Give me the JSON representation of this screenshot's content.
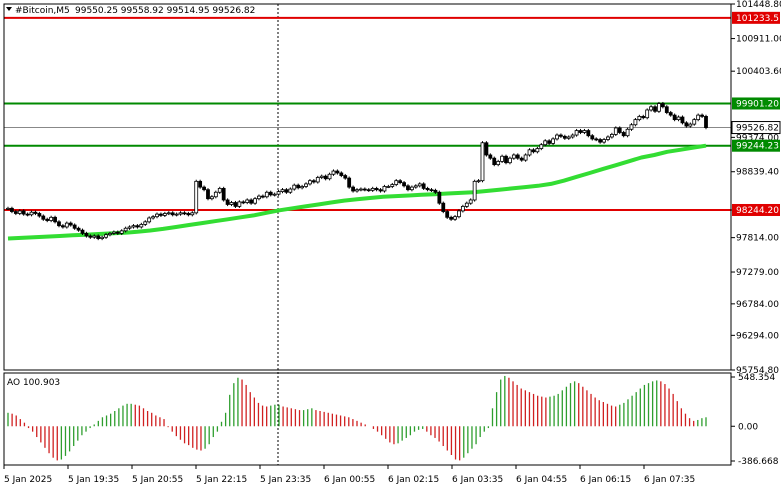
{
  "header": {
    "symbol_label": "#Bitcoin,M5",
    "ohlc": "99550.25 99558.92 99514.95 99526.82",
    "ao_label": "AO 100.903"
  },
  "chart_data": [
    {
      "type": "candlestick",
      "title": "#Bitcoin,M5",
      "ylim": [
        95754.8,
        101448.8
      ],
      "yticks": [
        "101448.80",
        "100911.00",
        "100403.60",
        "99374.00",
        "98839.40",
        "98244.20",
        "97814.00",
        "97279.00",
        "96784.00",
        "96294.00",
        "95754.80"
      ],
      "xticks": [
        "5 Jan 2025",
        "5 Jan 19:35",
        "5 Jan 20:55",
        "5 Jan 22:15",
        "5 Jan 23:35",
        "6 Jan 00:55",
        "6 Jan 02:15",
        "6 Jan 03:35",
        "6 Jan 04:55",
        "6 Jan 06:15",
        "6 Jan 07:35"
      ],
      "levels": [
        {
          "price": 101233.51,
          "label": "101233.51",
          "color": "#e00000"
        },
        {
          "price": 99901.2,
          "label": "99901.20",
          "color": "#008a00"
        },
        {
          "price": 99244.23,
          "label": "99244.23",
          "color": "#008a00"
        },
        {
          "price": 98244.2,
          "label": "98244.20",
          "color": "#e00000"
        }
      ],
      "current_price": {
        "price": 99526.82,
        "label": "99526.82"
      },
      "closes": [
        98270,
        98220,
        98190,
        98230,
        98180,
        98170,
        98210,
        98190,
        98150,
        98100,
        98080,
        98130,
        98060,
        98000,
        97980,
        98040,
        98010,
        97960,
        97930,
        97880,
        97840,
        97820,
        97840,
        97800,
        97820,
        97860,
        97880,
        97900,
        97880,
        97920,
        97960,
        97980,
        98000,
        97980,
        98020,
        98060,
        98120,
        98140,
        98180,
        98160,
        98190,
        98200,
        98170,
        98180,
        98200,
        98190,
        98170,
        98200,
        98690,
        98600,
        98560,
        98420,
        98450,
        98520,
        98580,
        98400,
        98330,
        98360,
        98300,
        98370,
        98360,
        98400,
        98350,
        98420,
        98460,
        98450,
        98520,
        98480,
        98490,
        98530,
        98560,
        98520,
        98570,
        98630,
        98590,
        98610,
        98650,
        98700,
        98680,
        98750,
        98770,
        98730,
        98800,
        98850,
        98820,
        98780,
        98740,
        98600,
        98540,
        98560,
        98570,
        98560,
        98550,
        98580,
        98560,
        98540,
        98610,
        98610,
        98640,
        98700,
        98670,
        98620,
        98560,
        98600,
        98620,
        98650,
        98580,
        98560,
        98550,
        98520,
        98350,
        98220,
        98130,
        98100,
        98140,
        98230,
        98300,
        98350,
        98400,
        98690,
        98700,
        99290,
        99100,
        99050,
        98950,
        99000,
        99080,
        98980,
        99050,
        99100,
        99050,
        99020,
        99100,
        99180,
        99150,
        99200,
        99260,
        99320,
        99280,
        99350,
        99410,
        99390,
        99360,
        99380,
        99410,
        99480,
        99450,
        99480,
        99400,
        99350,
        99340,
        99300,
        99340,
        99380,
        99420,
        99520,
        99450,
        99400,
        99500,
        99570,
        99650,
        99700,
        99680,
        99800,
        99850,
        99780,
        99900,
        99850,
        99760,
        99720,
        99650,
        99690,
        99600,
        99550,
        99580,
        99650,
        99720,
        99700,
        99526
      ],
      "ma": {
        "name": "",
        "values": [
          97800,
          97810,
          97820,
          97830,
          97840,
          97850,
          97860,
          97870,
          97880,
          97890,
          97905,
          97925,
          97950,
          97980,
          98010,
          98040,
          98070,
          98100,
          98130,
          98160,
          98200,
          98240,
          98270,
          98300,
          98330,
          98360,
          98390,
          98410,
          98430,
          98450,
          98460,
          98470,
          98480,
          98490,
          98500,
          98510,
          98520,
          98540,
          98560,
          98580,
          98600,
          98620,
          98650,
          98700,
          98760,
          98820,
          98880,
          98940,
          99000,
          99060,
          99100,
          99150,
          99180,
          99215,
          99244
        ]
      },
      "ao": {
        "ylim": [
          -386.668,
          548.354
        ],
        "yticks": [
          "548.354",
          "0.00",
          "-386.668"
        ],
        "values": [
          150,
          140,
          120,
          80,
          40,
          -20,
          -60,
          -120,
          -180,
          -240,
          -300,
          -350,
          -380,
          -370,
          -330,
          -280,
          -220,
          -160,
          -100,
          -60,
          -20,
          20,
          60,
          100,
          120,
          140,
          170,
          200,
          230,
          250,
          250,
          240,
          230,
          200,
          170,
          150,
          120,
          100,
          80,
          -10,
          -60,
          -110,
          -150,
          -190,
          -210,
          -240,
          -260,
          -270,
          -250,
          -200,
          -120,
          -60,
          50,
          150,
          350,
          480,
          540,
          520,
          460,
          380,
          320,
          260,
          230,
          220,
          230,
          240,
          240,
          220,
          210,
          200,
          190,
          180,
          180,
          190,
          200,
          180,
          170,
          160,
          150,
          140,
          130,
          120,
          110,
          100,
          80,
          60,
          40,
          20,
          0,
          -30,
          -60,
          -100,
          -140,
          -180,
          -200,
          -190,
          -160,
          -130,
          -100,
          -60,
          -40,
          -30,
          -60,
          -100,
          -130,
          -170,
          -220,
          -270,
          -320,
          -370,
          -380,
          -350,
          -300,
          -250,
          -200,
          -120,
          -60,
          -20,
          200,
          380,
          520,
          560,
          540,
          500,
          460,
          420,
          400,
          380,
          360,
          340,
          330,
          320,
          330,
          340,
          360,
          400,
          440,
          480,
          500,
          480,
          440,
          400,
          360,
          320,
          290,
          270,
          250,
          230,
          220,
          240,
          260,
          300,
          340,
          380,
          420,
          460,
          480,
          500,
          510,
          500,
          470,
          420,
          360,
          280,
          200,
          140,
          90,
          60,
          70,
          90,
          100
        ],
        "bar_up_color": "#2e9e2e",
        "bar_down_color": "#d02020"
      }
    }
  ],
  "colors": {
    "ma_line": "#33dd33",
    "candle": "#000000",
    "grid": "#c8c8c8",
    "red_level": "#e00000",
    "green_level": "#008a00"
  }
}
